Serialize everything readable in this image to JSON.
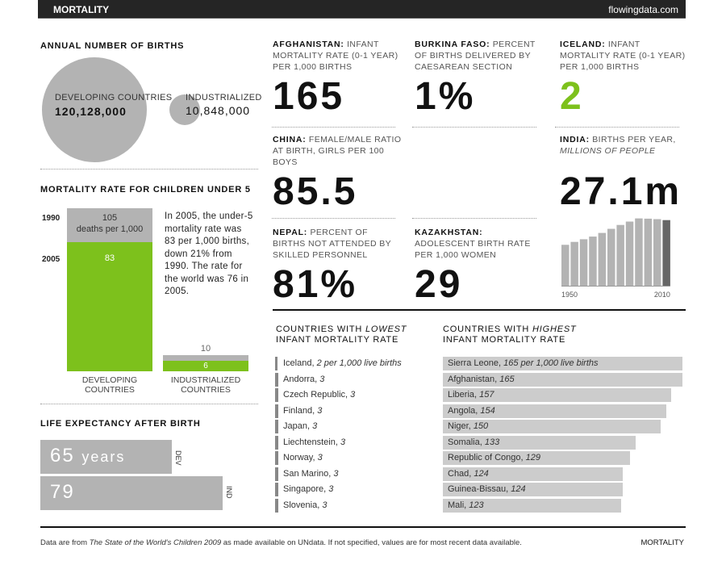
{
  "header": {
    "title": "MORTALITY",
    "site": "flowingdata.com"
  },
  "births": {
    "title": "ANNUAL NUMBER OF BIRTHS",
    "developing": {
      "label": "DEVELOPING COUNTRIES",
      "value": "120,128,000"
    },
    "industrialized": {
      "label": "INDUSTRIALIZED",
      "value": "10,848,000"
    }
  },
  "under5": {
    "title": "MORTALITY RATE FOR CHILDREN UNDER 5",
    "year1": "1990",
    "year2": "2005",
    "dev": {
      "v1990": "105",
      "unit": "deaths per 1,000",
      "v2005": "83",
      "label1": "DEVELOPING",
      "label2": "COUNTRIES"
    },
    "ind": {
      "v1990": "10",
      "v2005": "6",
      "label1": "INDUSTRIALIZED",
      "label2": "COUNTRIES"
    },
    "note": "In 2005, the under-5 mortality rate was 83 per 1,000 births, down 21% from 1990. The rate for the world was 76 in 2005."
  },
  "life": {
    "title": "LIFE EXPECTANCY AFTER BIRTH",
    "dev": {
      "value": "65",
      "unit": "years",
      "tag": "DEV"
    },
    "ind": {
      "value": "79",
      "tag": "IND"
    }
  },
  "stats": [
    {
      "country": "AFGHANISTAN:",
      "desc": "INFANT MORTALITY RATE (0-1 YEAR) PER 1,000 BIRTHS",
      "value": "165"
    },
    {
      "country": "BURKINA FASO:",
      "desc": "PERCENT OF BIRTHS DELIVERED BY CAESAREAN SECTION",
      "value": "1%"
    },
    {
      "country": "ICELAND:",
      "desc": "INFANT MORTALITY RATE (0-1 YEAR) PER 1,000 BIRTHS",
      "value": "2",
      "color": "#7dc11c"
    },
    {
      "country": "CHINA:",
      "desc": "FEMALE/MALE RATIO AT BIRTH, GIRLS PER 100 BOYS",
      "value": "85.5"
    },
    {
      "country": "INDIA:",
      "desc": "BIRTHS PER YEAR,",
      "desc2": "MILLIONS OF PEOPLE",
      "value": "27.1m"
    },
    {
      "country": "NEPAL:",
      "desc": "PERCENT OF BIRTHS NOT ATTENDED BY SKILLED PERSONNEL",
      "value": "81%"
    },
    {
      "country": "KAZAKHSTAN:",
      "desc": "ADOLESCENT BIRTH RATE PER 1,000 WOMEN",
      "value": "29"
    }
  ],
  "chart_data": {
    "type": "bar",
    "x": [
      1950,
      1955,
      1960,
      1965,
      1970,
      1975,
      1980,
      1985,
      1990,
      1995,
      2000,
      2005
    ],
    "values": [
      16.9,
      18.1,
      19.2,
      20.3,
      21.8,
      23.5,
      25.1,
      26.5,
      27.8,
      27.7,
      27.5,
      27.1
    ],
    "tick_labels": [
      "1950",
      "2010"
    ],
    "colors": {
      "bar": "#b3b3b3",
      "latest": "#666666"
    }
  },
  "lowest": {
    "title1": "COUNTRIES WITH",
    "title_em": "LOWEST",
    "title2": "INFANT MORTALITY RATE",
    "items": [
      {
        "name": "Iceland,",
        "value": "2 per 1,000 live births",
        "v": 2
      },
      {
        "name": "Andorra,",
        "value": "3",
        "v": 3
      },
      {
        "name": "Czech Republic,",
        "value": "3",
        "v": 3
      },
      {
        "name": "Finland,",
        "value": "3",
        "v": 3
      },
      {
        "name": "Japan,",
        "value": "3",
        "v": 3
      },
      {
        "name": "Liechtenstein,",
        "value": "3",
        "v": 3
      },
      {
        "name": "Norway,",
        "value": "3",
        "v": 3
      },
      {
        "name": "San Marino,",
        "value": "3",
        "v": 3
      },
      {
        "name": "Singapore,",
        "value": "3",
        "v": 3
      },
      {
        "name": "Slovenia,",
        "value": "3",
        "v": 3
      }
    ]
  },
  "highest": {
    "title1": "COUNTRIES WITH",
    "title_em": "HIGHEST",
    "title2": "INFANT MORTALITY RATE",
    "items": [
      {
        "name": "Sierra Leone,",
        "value": "165 per 1,000 live births",
        "v": 165
      },
      {
        "name": "Afghanistan,",
        "value": "165",
        "v": 165
      },
      {
        "name": "Liberia,",
        "value": "157",
        "v": 157
      },
      {
        "name": "Angola,",
        "value": "154",
        "v": 154
      },
      {
        "name": "Niger,",
        "value": "150",
        "v": 150
      },
      {
        "name": "Somalia,",
        "value": "133",
        "v": 133
      },
      {
        "name": "Republic of Congo,",
        "value": "129",
        "v": 129
      },
      {
        "name": "Chad,",
        "value": "124",
        "v": 124
      },
      {
        "name": "Guinea-Bissau,",
        "value": "124",
        "v": 124
      },
      {
        "name": "Mali,",
        "value": "123",
        "v": 123
      }
    ]
  },
  "colors": {
    "green": "#7dc11c",
    "gray": "#b3b3b3"
  },
  "footer": {
    "pre": "Data are from ",
    "source": "The State of the World's Children 2009",
    "post": " as made available on UNdata. If not specified, values are for most recent data available.",
    "right": "MORTALITY"
  }
}
